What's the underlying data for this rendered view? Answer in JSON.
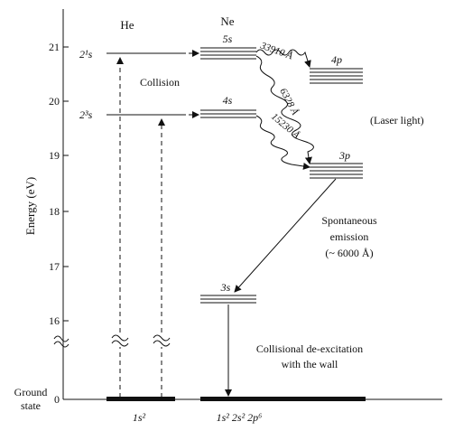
{
  "axis": {
    "ylabel": "Energy (eV)",
    "ticks": [
      "21",
      "20",
      "19",
      "18",
      "17",
      "16",
      "0"
    ],
    "ground_label_line1": "Ground",
    "ground_label_line2": "state"
  },
  "atoms": {
    "he": "He",
    "ne": "Ne"
  },
  "levels": {
    "he_singlet": "2¹s",
    "he_triplet": "2³s",
    "ne_5s": "5s",
    "ne_4s": "4s",
    "ne_4p": "4p",
    "ne_3p": "3p",
    "ne_3s": "3s",
    "he_ground": "1s²",
    "ne_ground": "1s² 2s² 2p⁶"
  },
  "transitions": {
    "t3391": "33910 Å",
    "t633": "6328 Å",
    "t1523": "15230 Å"
  },
  "annotations": {
    "collision": "Collision",
    "laser": "(Laser light)",
    "spont1": "Spontaneous",
    "spont2": "emission",
    "spont3": "(~ 6000 Å)",
    "deexc1": "Collisional de-excitation",
    "deexc2": "with the wall"
  }
}
